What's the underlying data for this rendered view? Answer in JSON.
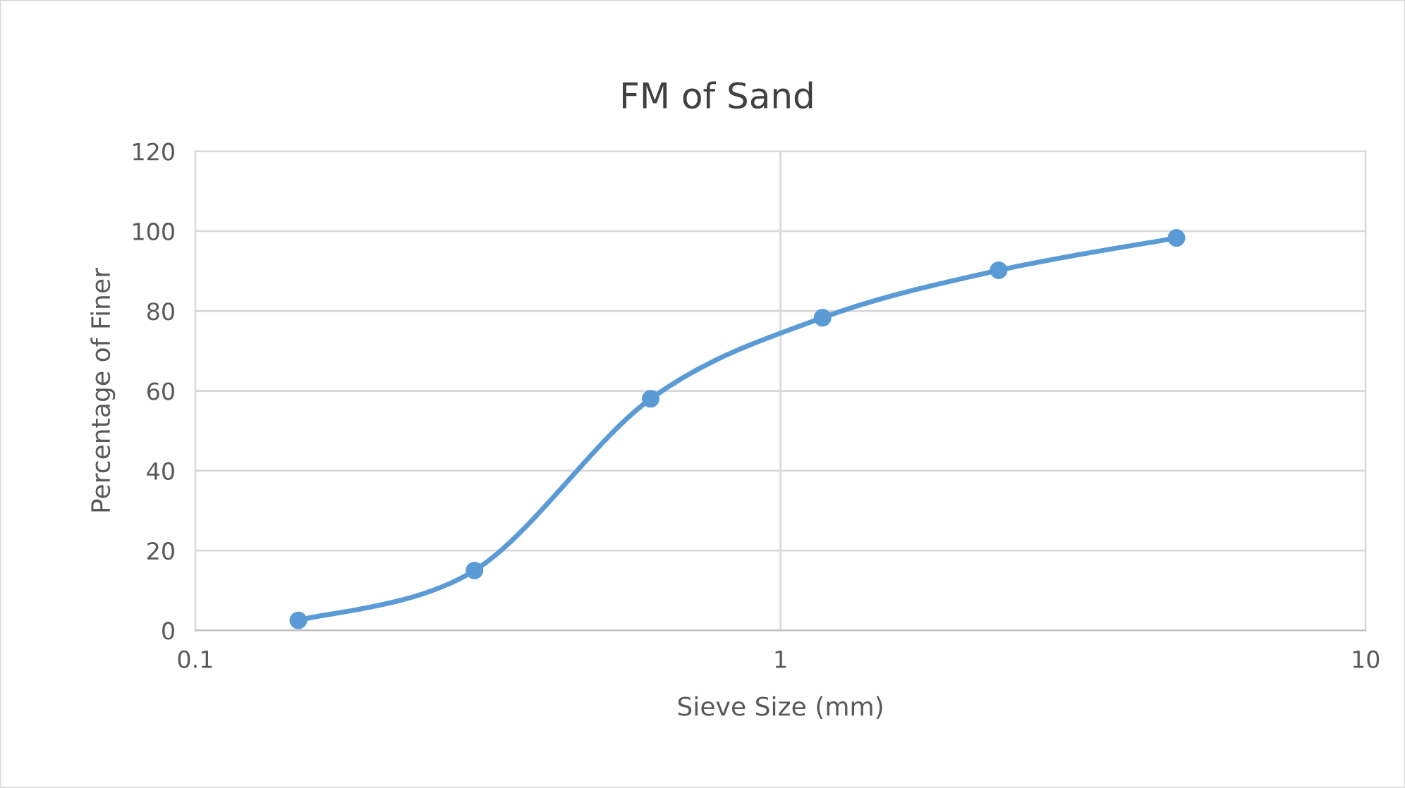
{
  "chart_data": {
    "type": "line",
    "title": "FM of Sand",
    "xlabel": "Sieve Size (mm)",
    "ylabel": "Percentage of Finer",
    "x": [
      0.15,
      0.3,
      0.6,
      1.18,
      2.36,
      4.75
    ],
    "series": [
      {
        "color": "#5b9bd5",
        "values": [
          2.5,
          15,
          58,
          78.3,
          90.2,
          98.3
        ]
      }
    ],
    "log": "x",
    "xlim": [
      0.1,
      10
    ],
    "xticks": [
      0.1,
      1,
      10
    ],
    "ylim": [
      0,
      120
    ],
    "yticks": [
      0,
      20,
      40,
      60,
      80,
      100,
      120
    ],
    "grid": true,
    "marker": "circle",
    "line_style": "solid"
  }
}
